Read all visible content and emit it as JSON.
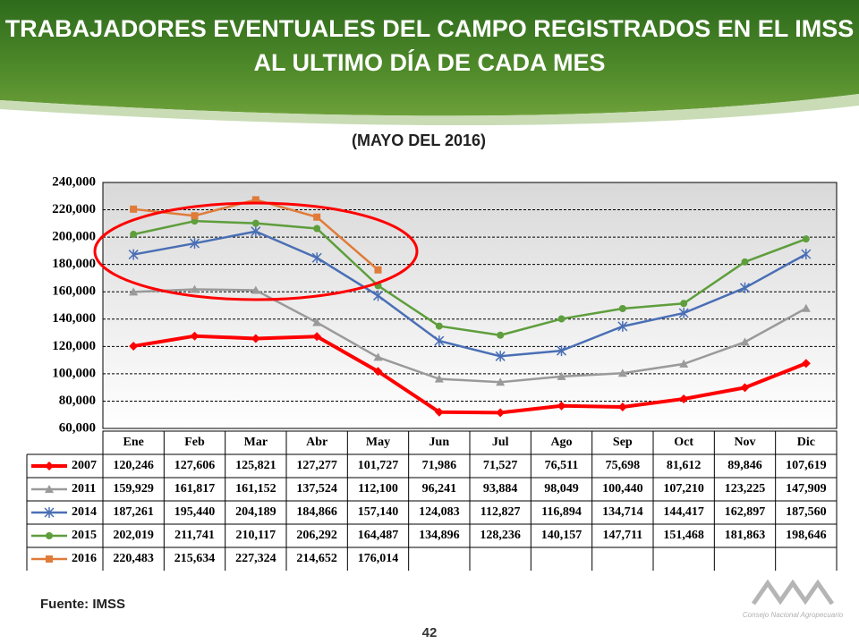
{
  "chart_data": {
    "type": "line",
    "title": [
      "TRABAJADORES EVENTUALES DEL CAMPO REGISTRADOS EN EL IMSS",
      "AL ULTIMO DÍA DE CADA MES"
    ],
    "subtitle": "(MAYO DEL 2016)",
    "source": "Fuente: IMSS",
    "page_number": "42",
    "logo_text": "Consejo Nacional Agropecuario",
    "categories": [
      "Ene",
      "Feb",
      "Mar",
      "Abr",
      "May",
      "Jun",
      "Jul",
      "Ago",
      "Sep",
      "Oct",
      "Nov",
      "Dic"
    ],
    "ylim": [
      60000,
      240000
    ],
    "yticks": [
      {
        "value": 60000,
        "label": "60,000"
      },
      {
        "value": 80000,
        "label": "80,000"
      },
      {
        "value": 100000,
        "label": "100,000"
      },
      {
        "value": 120000,
        "label": "120,000"
      },
      {
        "value": 140000,
        "label": "140,000"
      },
      {
        "value": 160000,
        "label": "160,000"
      },
      {
        "value": 180000,
        "label": "180,000"
      },
      {
        "value": 200000,
        "label": "200,000"
      },
      {
        "value": 220000,
        "label": "220,000"
      },
      {
        "value": 240000,
        "label": "240,000"
      }
    ],
    "grid": true,
    "series": [
      {
        "name": "2007",
        "color": "#ff0000",
        "marker": "diamond",
        "width": 4,
        "values": [
          120246,
          127606,
          125821,
          127277,
          101727,
          71986,
          71527,
          76511,
          75698,
          81612,
          89846,
          107619
        ],
        "value_labels": [
          "120,246",
          "127,606",
          "125,821",
          "127,277",
          "101,727",
          "71,986",
          "71,527",
          "76,511",
          "75,698",
          "81,612",
          "89,846",
          "107,619"
        ]
      },
      {
        "name": "2011",
        "color": "#9a9a9a",
        "marker": "triangle",
        "width": 2.5,
        "values": [
          159929,
          161817,
          161152,
          137524,
          112100,
          96241,
          93884,
          98049,
          100440,
          107210,
          123225,
          147909
        ],
        "value_labels": [
          "159,929",
          "161,817",
          "161,152",
          "137,524",
          "112,100",
          "96,241",
          "93,884",
          "98,049",
          "100,440",
          "107,210",
          "123,225",
          "147,909"
        ]
      },
      {
        "name": "2014",
        "color": "#4a6fb5",
        "marker": "star",
        "width": 2.5,
        "values": [
          187261,
          195440,
          204189,
          184866,
          157140,
          124083,
          112827,
          116894,
          134714,
          144417,
          162897,
          187560
        ],
        "value_labels": [
          "187,261",
          "195,440",
          "204,189",
          "184,866",
          "157,140",
          "124,083",
          "112,827",
          "116,894",
          "134,714",
          "144,417",
          "162,897",
          "187,560"
        ]
      },
      {
        "name": "2015",
        "color": "#5e9e3c",
        "marker": "circle",
        "width": 2.5,
        "values": [
          202019,
          211741,
          210117,
          206292,
          164487,
          134896,
          128236,
          140157,
          147711,
          151468,
          181863,
          198646
        ],
        "value_labels": [
          "202,019",
          "211,741",
          "210,117",
          "206,292",
          "164,487",
          "134,896",
          "128,236",
          "140,157",
          "147,711",
          "151,468",
          "181,863",
          "198,646"
        ]
      },
      {
        "name": "2016",
        "color": "#e07b39",
        "marker": "square",
        "width": 2.5,
        "values": [
          220483,
          215634,
          227324,
          214652,
          176014,
          null,
          null,
          null,
          null,
          null,
          null,
          null
        ],
        "value_labels": [
          "220,483",
          "215,634",
          "227,324",
          "214,652",
          "176,014",
          null,
          null,
          null,
          null,
          null,
          null,
          null
        ]
      }
    ]
  }
}
